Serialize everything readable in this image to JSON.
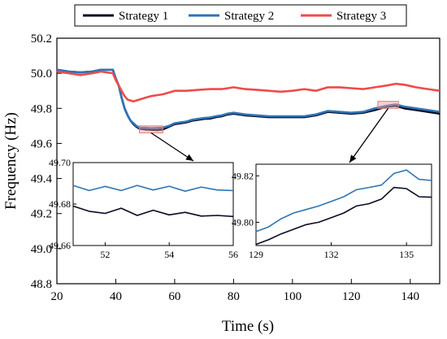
{
  "chart_data": {
    "type": "line",
    "xlabel": "Time (s)",
    "ylabel": "Frequency (Hz)",
    "xlim": [
      20,
      150
    ],
    "ylim": [
      48.8,
      50.2
    ],
    "xticks": [
      20,
      40,
      60,
      80,
      100,
      120,
      140
    ],
    "yticks": [
      48.8,
      49.0,
      49.2,
      49.4,
      49.6,
      49.8,
      50.0,
      50.2
    ],
    "grid": false,
    "legend_position": "top",
    "series": [
      {
        "name": "Strategy 1",
        "color": "#0a0a24",
        "x": [
          20,
          24,
          28,
          32,
          35,
          39,
          40,
          41,
          42,
          43,
          44,
          45,
          46,
          47,
          48,
          50,
          52,
          54,
          56,
          58,
          60,
          62,
          64,
          66,
          68,
          70,
          72,
          74,
          76,
          78,
          80,
          84,
          88,
          92,
          96,
          100,
          104,
          108,
          112,
          116,
          120,
          124,
          128,
          132,
          135,
          138,
          142,
          146,
          150
        ],
        "y": [
          50.02,
          50.01,
          50.005,
          50.01,
          50.02,
          50.02,
          49.97,
          49.93,
          49.86,
          49.8,
          49.76,
          49.73,
          49.71,
          49.695,
          49.685,
          49.68,
          49.678,
          49.676,
          49.68,
          49.695,
          49.71,
          49.715,
          49.72,
          49.73,
          49.735,
          49.74,
          49.742,
          49.75,
          49.755,
          49.765,
          49.77,
          49.76,
          49.755,
          49.75,
          49.75,
          49.75,
          49.75,
          49.76,
          49.78,
          49.775,
          49.77,
          49.775,
          49.79,
          49.81,
          49.815,
          49.8,
          49.79,
          49.78,
          49.77
        ]
      },
      {
        "name": "Strategy 2",
        "color": "#2e75b6",
        "x": [
          20,
          24,
          28,
          32,
          35,
          39,
          40,
          41,
          42,
          43,
          44,
          45,
          46,
          47,
          48,
          50,
          52,
          54,
          56,
          58,
          60,
          62,
          64,
          66,
          68,
          70,
          72,
          74,
          76,
          78,
          80,
          84,
          88,
          92,
          96,
          100,
          104,
          108,
          112,
          116,
          120,
          124,
          128,
          132,
          135,
          138,
          142,
          146,
          150
        ],
        "y": [
          50.02,
          50.01,
          50.005,
          50.01,
          50.02,
          50.02,
          49.97,
          49.93,
          49.86,
          49.8,
          49.76,
          49.73,
          49.715,
          49.7,
          49.69,
          49.689,
          49.687,
          49.688,
          49.69,
          49.7,
          49.715,
          49.72,
          49.725,
          49.735,
          49.74,
          49.745,
          49.748,
          49.755,
          49.76,
          49.77,
          49.775,
          49.765,
          49.76,
          49.755,
          49.755,
          49.755,
          49.755,
          49.765,
          49.785,
          49.78,
          49.775,
          49.78,
          49.8,
          49.815,
          49.822,
          49.81,
          49.8,
          49.79,
          49.78
        ]
      },
      {
        "name": "Strategy 3",
        "color": "#f04a4a",
        "x": [
          20,
          24,
          28,
          32,
          35,
          39,
          40,
          41,
          42,
          43,
          44,
          45,
          46,
          48,
          50,
          52,
          54,
          56,
          58,
          60,
          64,
          68,
          72,
          76,
          80,
          84,
          88,
          92,
          96,
          100,
          104,
          108,
          112,
          116,
          120,
          124,
          128,
          132,
          135,
          138,
          142,
          146,
          150
        ],
        "y": [
          50.01,
          50.0,
          49.99,
          50.0,
          50.01,
          50.0,
          49.96,
          49.93,
          49.9,
          49.87,
          49.85,
          49.845,
          49.84,
          49.85,
          49.86,
          49.87,
          49.875,
          49.88,
          49.89,
          49.9,
          49.9,
          49.905,
          49.91,
          49.91,
          49.92,
          49.91,
          49.905,
          49.9,
          49.895,
          49.9,
          49.91,
          49.9,
          49.92,
          49.92,
          49.915,
          49.91,
          49.92,
          49.93,
          49.94,
          49.935,
          49.92,
          49.91,
          49.9
        ]
      }
    ],
    "insets": [
      {
        "xlim": [
          51,
          56
        ],
        "ylim": [
          49.66,
          49.7
        ],
        "xticks": [
          52,
          54,
          56
        ],
        "yticks": [
          49.66,
          49.68,
          49.7
        ],
        "series": [
          {
            "name": "Strategy 1",
            "x": [
              51,
              51.5,
              52,
              52.5,
              53,
              53.5,
              54,
              54.5,
              55,
              55.5,
              56
            ],
            "y": [
              49.679,
              49.6765,
              49.6755,
              49.678,
              49.6745,
              49.677,
              49.6748,
              49.676,
              49.6742,
              49.6745,
              49.674
            ]
          },
          {
            "name": "Strategy 2",
            "x": [
              51,
              51.5,
              52,
              52.5,
              53,
              53.5,
              54,
              54.5,
              55,
              55.5,
              56
            ],
            "y": [
              49.689,
              49.6865,
              49.6885,
              49.6865,
              49.689,
              49.6868,
              49.6886,
              49.6862,
              49.6882,
              49.6868,
              49.6865
            ]
          }
        ]
      },
      {
        "xlim": [
          129,
          136
        ],
        "ylim": [
          49.79,
          49.825
        ],
        "xticks": [
          129,
          132,
          135
        ],
        "yticks": [
          49.8,
          49.82
        ],
        "series": [
          {
            "name": "Strategy 1",
            "x": [
              129,
              129.5,
              130,
              130.5,
              131,
              131.5,
              132,
              132.5,
              133,
              133.5,
              134,
              134.5,
              135,
              135.5,
              136
            ],
            "y": [
              49.7905,
              49.7925,
              49.795,
              49.797,
              49.799,
              49.8,
              49.802,
              49.804,
              49.807,
              49.808,
              49.81,
              49.815,
              49.8145,
              49.811,
              49.8108
            ]
          },
          {
            "name": "Strategy 2",
            "x": [
              129,
              129.5,
              130,
              130.5,
              131,
              131.5,
              132,
              132.5,
              133,
              133.5,
              134,
              134.5,
              135,
              135.5,
              136
            ],
            "y": [
              49.796,
              49.798,
              49.8015,
              49.804,
              49.8055,
              49.807,
              49.809,
              49.811,
              49.814,
              49.815,
              49.816,
              49.821,
              49.8225,
              49.8185,
              49.818
            ]
          }
        ]
      }
    ],
    "highlight_boxes": [
      {
        "xrange": [
          48,
          56
        ],
        "yrange": [
          49.66,
          49.7
        ]
      },
      {
        "xrange": [
          129,
          136
        ],
        "yrange": [
          49.8,
          49.84
        ]
      }
    ]
  }
}
